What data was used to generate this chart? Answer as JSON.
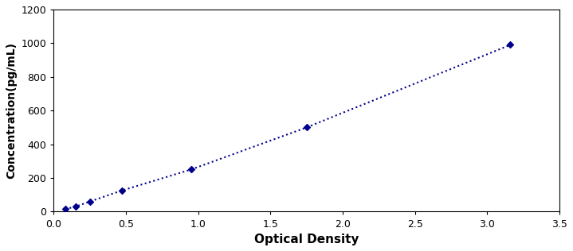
{
  "x_data": [
    0.08,
    0.15,
    0.25,
    0.47,
    0.95,
    1.75,
    3.16
  ],
  "y_data": [
    15,
    30,
    60,
    125,
    250,
    500,
    990
  ],
  "line_color": "#00008B",
  "marker_color": "#00008B",
  "marker_style": "D",
  "marker_size": 4,
  "line_style": ":",
  "line_width": 1.5,
  "xlabel": "Optical Density",
  "ylabel": "Concentration(pg/mL)",
  "xlim": [
    0,
    3.5
  ],
  "ylim": [
    0,
    1200
  ],
  "xticks": [
    0,
    0.5,
    1.0,
    1.5,
    2.0,
    2.5,
    3.0,
    3.5
  ],
  "yticks": [
    0,
    200,
    400,
    600,
    800,
    1000,
    1200
  ],
  "xlabel_fontsize": 11,
  "ylabel_fontsize": 10,
  "tick_fontsize": 9,
  "background_color": "#ffffff",
  "figure_background": "#ffffff",
  "border_color": "#aaaaaa"
}
